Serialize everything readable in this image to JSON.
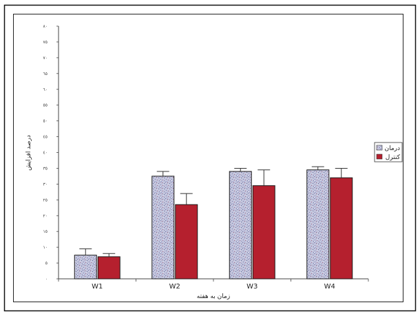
{
  "chart_data": {
    "type": "bar",
    "title": "",
    "xlabel": "زمان به هفته",
    "ylabel": "درصد افزایش",
    "categories": [
      "W1",
      "W2",
      "W3",
      "W4"
    ],
    "ylim": [
      0,
      80
    ],
    "yticks": [
      0,
      5,
      10,
      15,
      20,
      25,
      30,
      35,
      40,
      45,
      50,
      55,
      60,
      65,
      70,
      75,
      80
    ],
    "ytick_labels": [
      "٠",
      "٥",
      "١٠",
      "١٥",
      "٢٠",
      "٢٥",
      "٣٠",
      "٣٥",
      "٤٠",
      "٤٥",
      "٥٠",
      "٥٥",
      "٦٠",
      "٦٥",
      "٧٠",
      "٧٥",
      "٨٠"
    ],
    "grid": false,
    "legend_position": "right",
    "series": [
      {
        "name": "درمان",
        "values": [
          7.5,
          32.5,
          34,
          34.5
        ],
        "errors": [
          2,
          1.5,
          1,
          1
        ],
        "color": "#b9bcd6",
        "pattern": "speckled"
      },
      {
        "name": "کنترل",
        "values": [
          7,
          23.5,
          29.5,
          32
        ],
        "errors": [
          1,
          3.5,
          5,
          3
        ],
        "color": "#b5202e",
        "pattern": "solid"
      }
    ]
  }
}
